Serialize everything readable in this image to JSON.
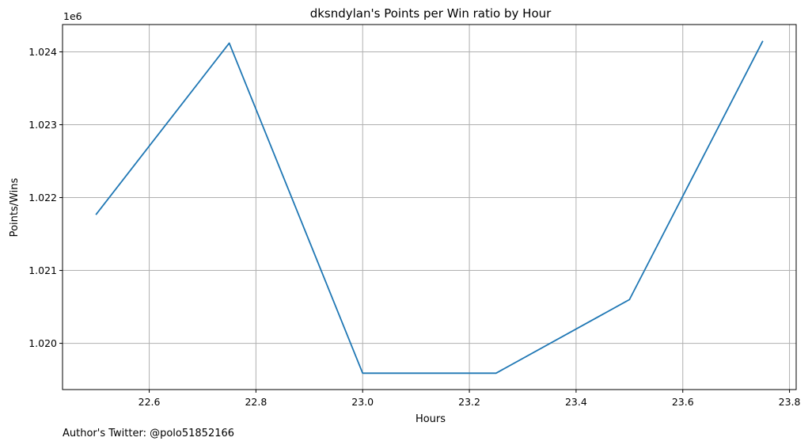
{
  "chart_data": {
    "type": "line",
    "title": "dksndylan's Points per Win ratio by Hour",
    "xlabel": "Hours",
    "ylabel": "Points/Wins",
    "y_offset_label": "1e6",
    "x": [
      22.5,
      22.75,
      23.0,
      23.25,
      23.5,
      23.75
    ],
    "series": [
      {
        "values": [
          1021765,
          1024120,
          1019590,
          1019590,
          1020600,
          1024150
        ]
      }
    ],
    "xlim": [
      22.4375,
      23.8125
    ],
    "ylim": [
      1019365,
      1024375
    ],
    "x_ticks": [
      22.6,
      22.8,
      23.0,
      23.2,
      23.4,
      23.6,
      23.8
    ],
    "x_tick_labels": [
      "22.6",
      "22.8",
      "23.0",
      "23.2",
      "23.4",
      "23.6",
      "23.8"
    ],
    "y_ticks": [
      1020000,
      1021000,
      1022000,
      1023000,
      1024000
    ],
    "y_tick_labels": [
      "1.020",
      "1.021",
      "1.022",
      "1.023",
      "1.024"
    ],
    "grid": true,
    "line_color": "#1f77b4",
    "grid_color": "#b0b0b0"
  },
  "footer": {
    "text": "Author's Twitter: @polo51852166"
  }
}
